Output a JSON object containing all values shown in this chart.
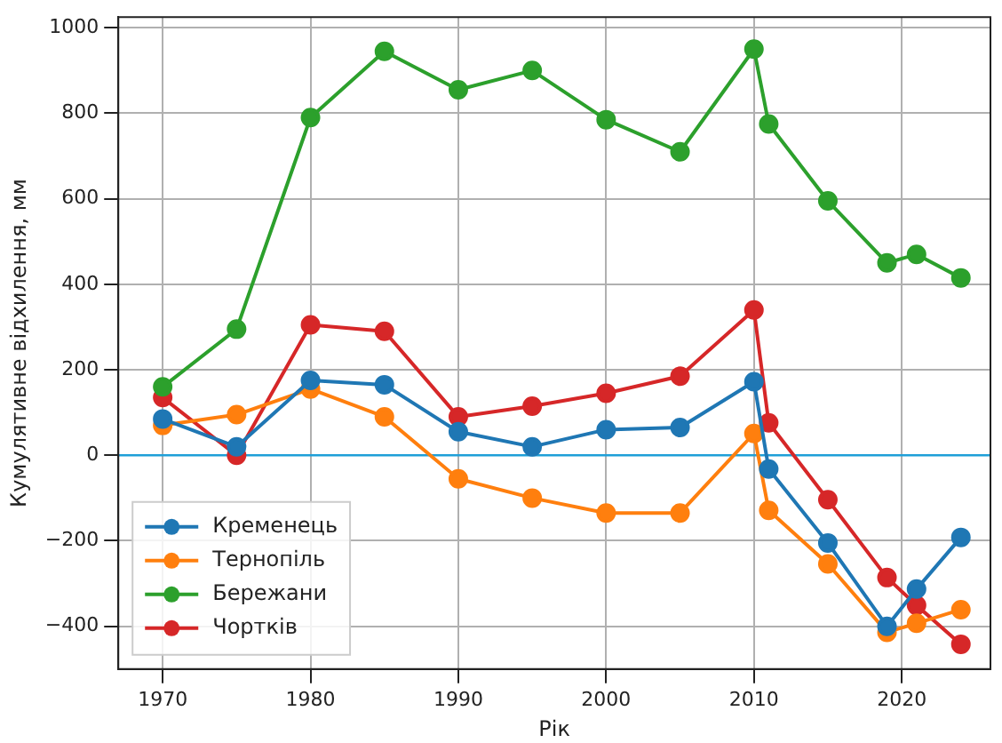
{
  "chart_data": {
    "type": "line",
    "xlabel": "Рік",
    "ylabel": "Кумулятивне відхилення, мм",
    "x": [
      1970,
      1975,
      1980,
      1985,
      1990,
      1995,
      2000,
      2005,
      2010,
      2011,
      2015,
      2019,
      2021,
      2024
    ],
    "series": [
      {
        "name": "Кременець",
        "color": "#1f77b4",
        "values": [
          85,
          20,
          175,
          165,
          55,
          20,
          60,
          65,
          172,
          -32,
          -205,
          -400,
          -313,
          -192
        ]
      },
      {
        "name": "Тернопіль",
        "color": "#ff7f0e",
        "values": [
          70,
          95,
          155,
          90,
          -55,
          -100,
          -135,
          -135,
          51,
          -129,
          -254,
          -414,
          -393,
          -361
        ]
      },
      {
        "name": "Бережани",
        "color": "#2ca02c",
        "values": [
          160,
          295,
          790,
          945,
          855,
          900,
          785,
          710,
          950,
          775,
          595,
          450,
          470,
          415
        ]
      },
      {
        "name": "Чортків",
        "color": "#d62728",
        "values": [
          135,
          0,
          305,
          290,
          90,
          115,
          145,
          185,
          340,
          76,
          -104,
          -286,
          -351,
          -442
        ]
      }
    ],
    "xlim": [
      1967,
      2026
    ],
    "xticks": [
      1970,
      1980,
      1990,
      2000,
      2010,
      2020
    ],
    "ylim": [
      -500,
      1025
    ],
    "yticks": [
      -400,
      -200,
      0,
      200,
      400,
      600,
      800,
      1000
    ],
    "ref_lines": [
      {
        "axis": "y",
        "value": 0,
        "color": "#1f9fd8"
      }
    ],
    "grid": true,
    "legend": "bottom left",
    "marker": "circle",
    "line_style": "solid"
  }
}
